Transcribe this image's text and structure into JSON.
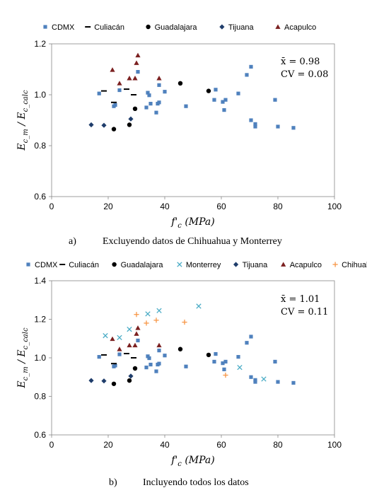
{
  "legend_a": {
    "items": [
      {
        "label": "CDMX",
        "marker": "square",
        "color": "#4f81bd"
      },
      {
        "label": "Culiacán",
        "marker": "dash",
        "color": "#000000"
      },
      {
        "label": "Guadalajara",
        "marker": "circle",
        "color": "#000000"
      },
      {
        "label": "Tijuana",
        "marker": "diamond",
        "color": "#1f3d6b"
      },
      {
        "label": "Acapulco",
        "marker": "triangle",
        "color": "#7b2020"
      }
    ]
  },
  "legend_b": {
    "items": [
      {
        "label": "CDMX",
        "marker": "square",
        "color": "#4f81bd"
      },
      {
        "label": "Culiacán",
        "marker": "dash",
        "color": "#000000"
      },
      {
        "label": "Guadalajara",
        "marker": "circle",
        "color": "#000000"
      },
      {
        "label": "Monterrey",
        "marker": "x",
        "color": "#4bacc6"
      },
      {
        "label": "Tijuana",
        "marker": "diamond",
        "color": "#1f3d6b"
      },
      {
        "label": "Acapulco",
        "marker": "triangle",
        "color": "#7b2020"
      },
      {
        "label": "Chihuahua",
        "marker": "plus",
        "color": "#f79646"
      }
    ]
  },
  "captions": {
    "a_letter": "a)",
    "a_text": "Excluyendo datos de Chihuahua y Monterrey",
    "b_letter": "b)",
    "b_text": "Incluyendo todos los datos"
  },
  "chart_data": [
    {
      "type": "scatter",
      "title": "",
      "xlabel": "f'c (MPa)",
      "ylabel": "Ec_m / Ec_calc",
      "xlim": [
        0,
        100
      ],
      "ylim": [
        0.6,
        1.2
      ],
      "xticks": [
        "0",
        "20",
        "40",
        "60",
        "80",
        "100"
      ],
      "yticks": [
        "0.6",
        "0.8",
        "1.0",
        "1.2"
      ],
      "grid": false,
      "legend_position": "top",
      "annotation": {
        "mean": "x̄ = 0.98",
        "cv": "CV = 0.08"
      },
      "series": [
        {
          "name": "CDMX",
          "points": [
            [
              16.8,
              1.005
            ],
            [
              22,
              0.955
            ],
            [
              22.5,
              0.96
            ],
            [
              24,
              1.018
            ],
            [
              30.5,
              1.09
            ],
            [
              33.5,
              0.95
            ],
            [
              34,
              1.008
            ],
            [
              34.5,
              0.998
            ],
            [
              35,
              0.965
            ],
            [
              37,
              0.93
            ],
            [
              37.5,
              0.965
            ],
            [
              38,
              0.97
            ],
            [
              38,
              1.038
            ],
            [
              40,
              1.012
            ],
            [
              47.5,
              0.955
            ],
            [
              57.5,
              0.98
            ],
            [
              58,
              1.02
            ],
            [
              60.5,
              0.972
            ],
            [
              61,
              0.94
            ],
            [
              61.5,
              0.98
            ],
            [
              66,
              1.005
            ],
            [
              69,
              1.078
            ],
            [
              70.5,
              1.11
            ],
            [
              70.5,
              0.9
            ],
            [
              72,
              0.885
            ],
            [
              72,
              0.875
            ],
            [
              79,
              0.98
            ],
            [
              80,
              0.875
            ],
            [
              85.5,
              0.87
            ]
          ]
        },
        {
          "name": "Culiacán",
          "points": [
            [
              18.5,
              1.015
            ],
            [
              22,
              0.97
            ],
            [
              26.5,
              1.022
            ],
            [
              29,
              1.0
            ]
          ]
        },
        {
          "name": "Guadalajara",
          "points": [
            [
              22,
              0.865
            ],
            [
              27.5,
              0.882
            ],
            [
              29.5,
              0.945
            ],
            [
              45.5,
              1.045
            ],
            [
              55.5,
              1.015
            ]
          ]
        },
        {
          "name": "Tijuana",
          "points": [
            [
              14,
              0.882
            ],
            [
              18.5,
              0.88
            ],
            [
              28,
              0.905
            ]
          ]
        },
        {
          "name": "Acapulco",
          "points": [
            [
              21.5,
              1.098
            ],
            [
              24,
              1.045
            ],
            [
              27.5,
              1.065
            ],
            [
              29.5,
              1.065
            ],
            [
              30,
              1.125
            ],
            [
              30.5,
              1.155
            ],
            [
              38,
              1.065
            ]
          ]
        }
      ]
    },
    {
      "type": "scatter",
      "title": "",
      "xlabel": "f'c (MPa)",
      "ylabel": "Ec_m / Ec_calc",
      "xlim": [
        0,
        100
      ],
      "ylim": [
        0.6,
        1.4
      ],
      "xticks": [
        "0",
        "20",
        "40",
        "60",
        "80",
        "100"
      ],
      "yticks": [
        "0.6",
        "0.8",
        "1.0",
        "1.2",
        "1.4"
      ],
      "grid": false,
      "legend_position": "top",
      "annotation": {
        "mean": "x̄ = 1.01",
        "cv": "CV = 0.11"
      },
      "series": [
        {
          "name": "CDMX",
          "points": [
            [
              16.8,
              1.005
            ],
            [
              22,
              0.955
            ],
            [
              22.5,
              0.96
            ],
            [
              24,
              1.018
            ],
            [
              30.5,
              1.09
            ],
            [
              33.5,
              0.95
            ],
            [
              34,
              1.008
            ],
            [
              34.5,
              0.998
            ],
            [
              35,
              0.965
            ],
            [
              37,
              0.93
            ],
            [
              37.5,
              0.965
            ],
            [
              38,
              0.97
            ],
            [
              38,
              1.038
            ],
            [
              40,
              1.012
            ],
            [
              47.5,
              0.955
            ],
            [
              57.5,
              0.98
            ],
            [
              58,
              1.02
            ],
            [
              60.5,
              0.972
            ],
            [
              61,
              0.94
            ],
            [
              61.5,
              0.98
            ],
            [
              66,
              1.005
            ],
            [
              69,
              1.078
            ],
            [
              70.5,
              1.11
            ],
            [
              70.5,
              0.9
            ],
            [
              72,
              0.885
            ],
            [
              72,
              0.875
            ],
            [
              79,
              0.98
            ],
            [
              80,
              0.875
            ],
            [
              85.5,
              0.87
            ]
          ]
        },
        {
          "name": "Culiacán",
          "points": [
            [
              18.5,
              1.015
            ],
            [
              22,
              0.97
            ],
            [
              26.5,
              1.022
            ],
            [
              29,
              1.0
            ]
          ]
        },
        {
          "name": "Guadalajara",
          "points": [
            [
              22,
              0.865
            ],
            [
              27.5,
              0.882
            ],
            [
              29.5,
              0.945
            ],
            [
              45.5,
              1.045
            ],
            [
              55.5,
              1.015
            ]
          ]
        },
        {
          "name": "Monterrey",
          "points": [
            [
              19,
              1.115
            ],
            [
              24,
              1.105
            ],
            [
              27.5,
              1.148
            ],
            [
              34,
              1.228
            ],
            [
              38,
              1.245
            ],
            [
              52,
              1.268
            ],
            [
              66.5,
              0.95
            ],
            [
              75,
              0.89
            ]
          ]
        },
        {
          "name": "Tijuana",
          "points": [
            [
              14,
              0.882
            ],
            [
              18.5,
              0.88
            ],
            [
              28,
              0.905
            ]
          ]
        },
        {
          "name": "Acapulco",
          "points": [
            [
              21.5,
              1.098
            ],
            [
              24,
              1.045
            ],
            [
              27.5,
              1.065
            ],
            [
              29.5,
              1.065
            ],
            [
              30,
              1.125
            ],
            [
              30.5,
              1.155
            ],
            [
              38,
              1.065
            ]
          ]
        },
        {
          "name": "Chihuahua",
          "points": [
            [
              30,
              1.225
            ],
            [
              33.5,
              1.18
            ],
            [
              37,
              1.195
            ],
            [
              47,
              1.185
            ],
            [
              61.5,
              0.91
            ]
          ]
        }
      ]
    }
  ]
}
